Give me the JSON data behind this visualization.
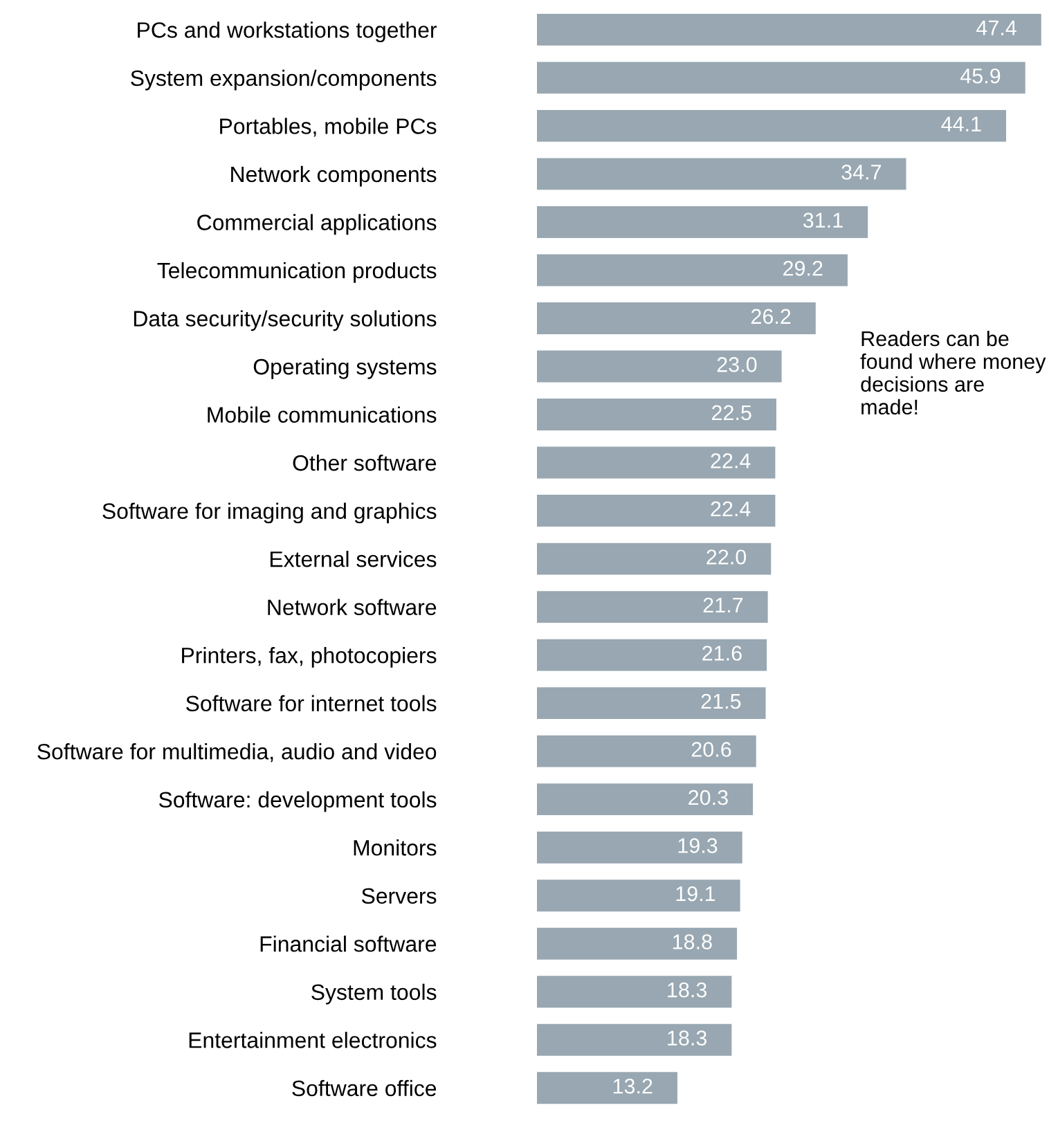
{
  "chart_data": {
    "type": "bar",
    "orientation": "horizontal",
    "value_labels": [
      "47.4",
      "45.9",
      "44.1",
      "34.7",
      "31.1",
      "29.2",
      "26.2",
      "23.0",
      "22.5",
      "22.4",
      "22.4",
      "22.0",
      "21.7",
      "21.6",
      "21.5",
      "20.6",
      "20.3",
      "19.3",
      "19.1",
      "18.8",
      "18.3",
      "18.3",
      "13.2"
    ],
    "color": "#98a7b1",
    "categories": [
      "PCs and workstations together",
      "System expansion/components",
      "Portables, mobile PCs",
      "Network components",
      "Commercial applications",
      "Telecommunication products",
      "Data security/security solutions",
      "Operating systems",
      "Mobile communications",
      "Other software",
      "Software for imaging and graphics",
      "External services",
      "Network software",
      "Printers, fax, photocopiers",
      "Software for internet tools",
      "Software for multimedia, audio and video",
      "Software: development tools",
      "Monitors",
      "Servers",
      "Financial software",
      "System tools",
      "Entertainment electronics",
      "Software office"
    ],
    "values": [
      47.4,
      45.9,
      44.1,
      34.7,
      31.1,
      29.2,
      26.2,
      23.0,
      22.5,
      22.4,
      22.4,
      22.0,
      21.7,
      21.6,
      21.5,
      20.6,
      20.3,
      19.3,
      19.1,
      18.8,
      18.3,
      18.3,
      13.2
    ],
    "annotations": [
      "Readers can be found where money decisions are made!"
    ]
  }
}
